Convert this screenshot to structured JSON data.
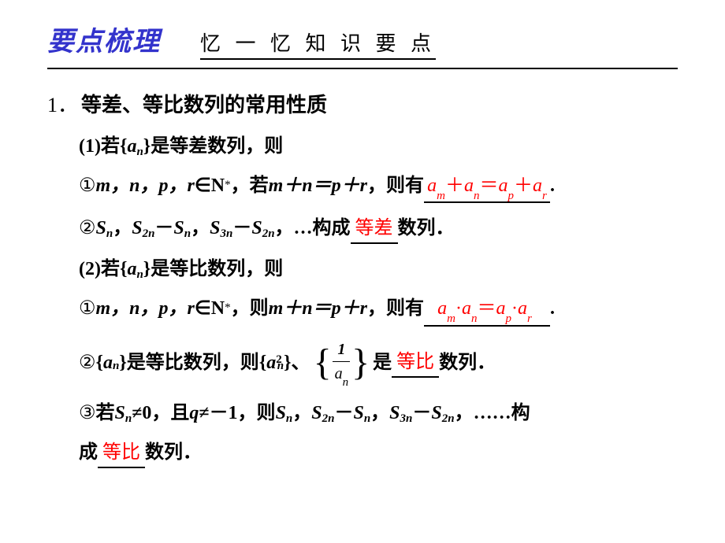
{
  "colors": {
    "title_color": "#3333cc",
    "answer_color": "#ff0000",
    "text_color": "#000000",
    "background": "#ffffff"
  },
  "typography": {
    "title_fontsize": 34,
    "subtitle_fontsize": 26,
    "body_fontsize": 24,
    "subscript_fontsize": 15
  },
  "header": {
    "title": "要点梳理",
    "subtitle": "忆 一 忆 知 识 要 点"
  },
  "section": {
    "number": "1．",
    "title": "等差、等比数列的常用性质"
  },
  "part1": {
    "intro_pre": "(1)若{",
    "seq": "a",
    "seq_sub": "n",
    "intro_post": "}是等差数列，则",
    "item1": {
      "circled": "①",
      "vars": "m，n，p，r",
      "in": "∈",
      "set": "N",
      "set_sup": "*",
      "cond": "，若",
      "eq_lhs": "m＋n＝p＋r",
      "then": "，则有",
      "answer": "aₘ＋aₙ＝aₚ＋aᵣ",
      "ans_parts": {
        "a": "a",
        "m": "m",
        "plus": "＋",
        "n": "n",
        "eq": "＝",
        "p": "p",
        "r": "r"
      },
      "end": "."
    },
    "item2": {
      "circled": "②",
      "s": "S",
      "n": "n",
      "2n": "2n",
      "3n": "3n",
      "comma": "，",
      "minus": "－",
      "dots": "…构成",
      "answer": "等差",
      "end": " 数列．"
    }
  },
  "part2": {
    "intro_pre": "(2)若{",
    "seq": "a",
    "seq_sub": "n",
    "intro_post": "}是等比数列，则",
    "item1": {
      "circled": "①",
      "vars": "m，n，p，r",
      "in": "∈",
      "set": "N",
      "set_sup": "*",
      "cond": "，则",
      "eq_lhs": "m＋n＝p＋r",
      "then": "，则有",
      "ans_parts": {
        "a": "a",
        "m": "m",
        "dot": "·",
        "n": "n",
        "eq": "＝",
        "p": "p",
        "r": "r"
      },
      "end": "."
    },
    "item2": {
      "circled": "②",
      "pre": "{",
      "seq": "a",
      "sub": "n",
      "mid": "}是等比数列，则{",
      "sq_sup": "2",
      "post": "}、",
      "frac_num": "1",
      "frac_den_a": "a",
      "frac_den_n": "n",
      "is": "是",
      "answer": "等比",
      "end": " 数列．"
    },
    "item3": {
      "circled": "③",
      "pre": "若",
      "s": "S",
      "n": "n",
      "ne": "≠0，且",
      "q": "q",
      "nem1": "≠－1，则",
      "2n": "2n",
      "3n": "3n",
      "minus": "－",
      "comma": "，",
      "dots": "……构",
      "line2_pre": "成",
      "answer": "等比",
      "end": " 数列．"
    }
  }
}
